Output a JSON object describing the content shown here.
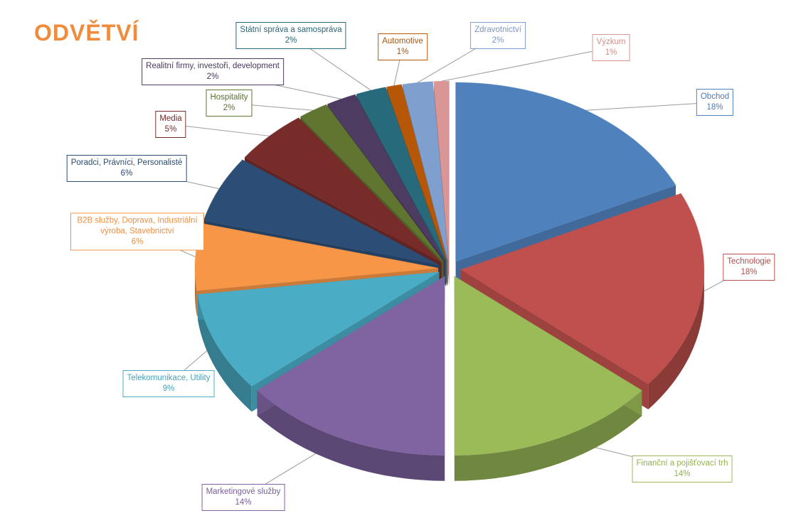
{
  "chart_data": {
    "type": "pie",
    "title": "ODVĚTVÍ",
    "title_color": "#F08B3C",
    "slices": [
      {
        "name": "Obchod",
        "value": 18,
        "label_value": "18%",
        "color": "#4F81BD"
      },
      {
        "name": "Technologie",
        "value": 18,
        "label_value": "18%",
        "color": "#C0504D"
      },
      {
        "name": "Finanční a pojišťovací trh",
        "value": 14,
        "label_value": "14%",
        "color": "#9BBB59"
      },
      {
        "name": "Marketingové služby",
        "value": 14,
        "label_value": "14%",
        "color": "#8064A2"
      },
      {
        "name": "Telekomunikace, Utility",
        "value": 9,
        "label_value": "9%",
        "color": "#4BACC6"
      },
      {
        "name": "B2B služby, Doprava, Industriální výroba, Stavebnictví",
        "value": 6,
        "label_value": "6%",
        "color": "#F79646"
      },
      {
        "name": "Poradci, Právníci, Personalisté",
        "value": 6,
        "label_value": "6%",
        "color": "#2C4D75"
      },
      {
        "name": "Media",
        "value": 5,
        "label_value": "5%",
        "color": "#772C2A"
      },
      {
        "name": "Hospitality",
        "value": 2,
        "label_value": "2%",
        "color": "#5F7530"
      },
      {
        "name": "Realitní firmy, investoři, development",
        "value": 2,
        "label_value": "2%",
        "color": "#4D3B62"
      },
      {
        "name": "Státní správa a samospráva",
        "value": 2,
        "label_value": "2%",
        "color": "#276A7C"
      },
      {
        "name": "Automotive",
        "value": 1,
        "label_value": "1%",
        "color": "#B65708"
      },
      {
        "name": "Zdravotnictví",
        "value": 2,
        "label_value": "2%",
        "color": "#7F9FCF"
      },
      {
        "name": "Výzkum",
        "value": 1,
        "label_value": "1%",
        "color": "#D99694"
      }
    ]
  }
}
